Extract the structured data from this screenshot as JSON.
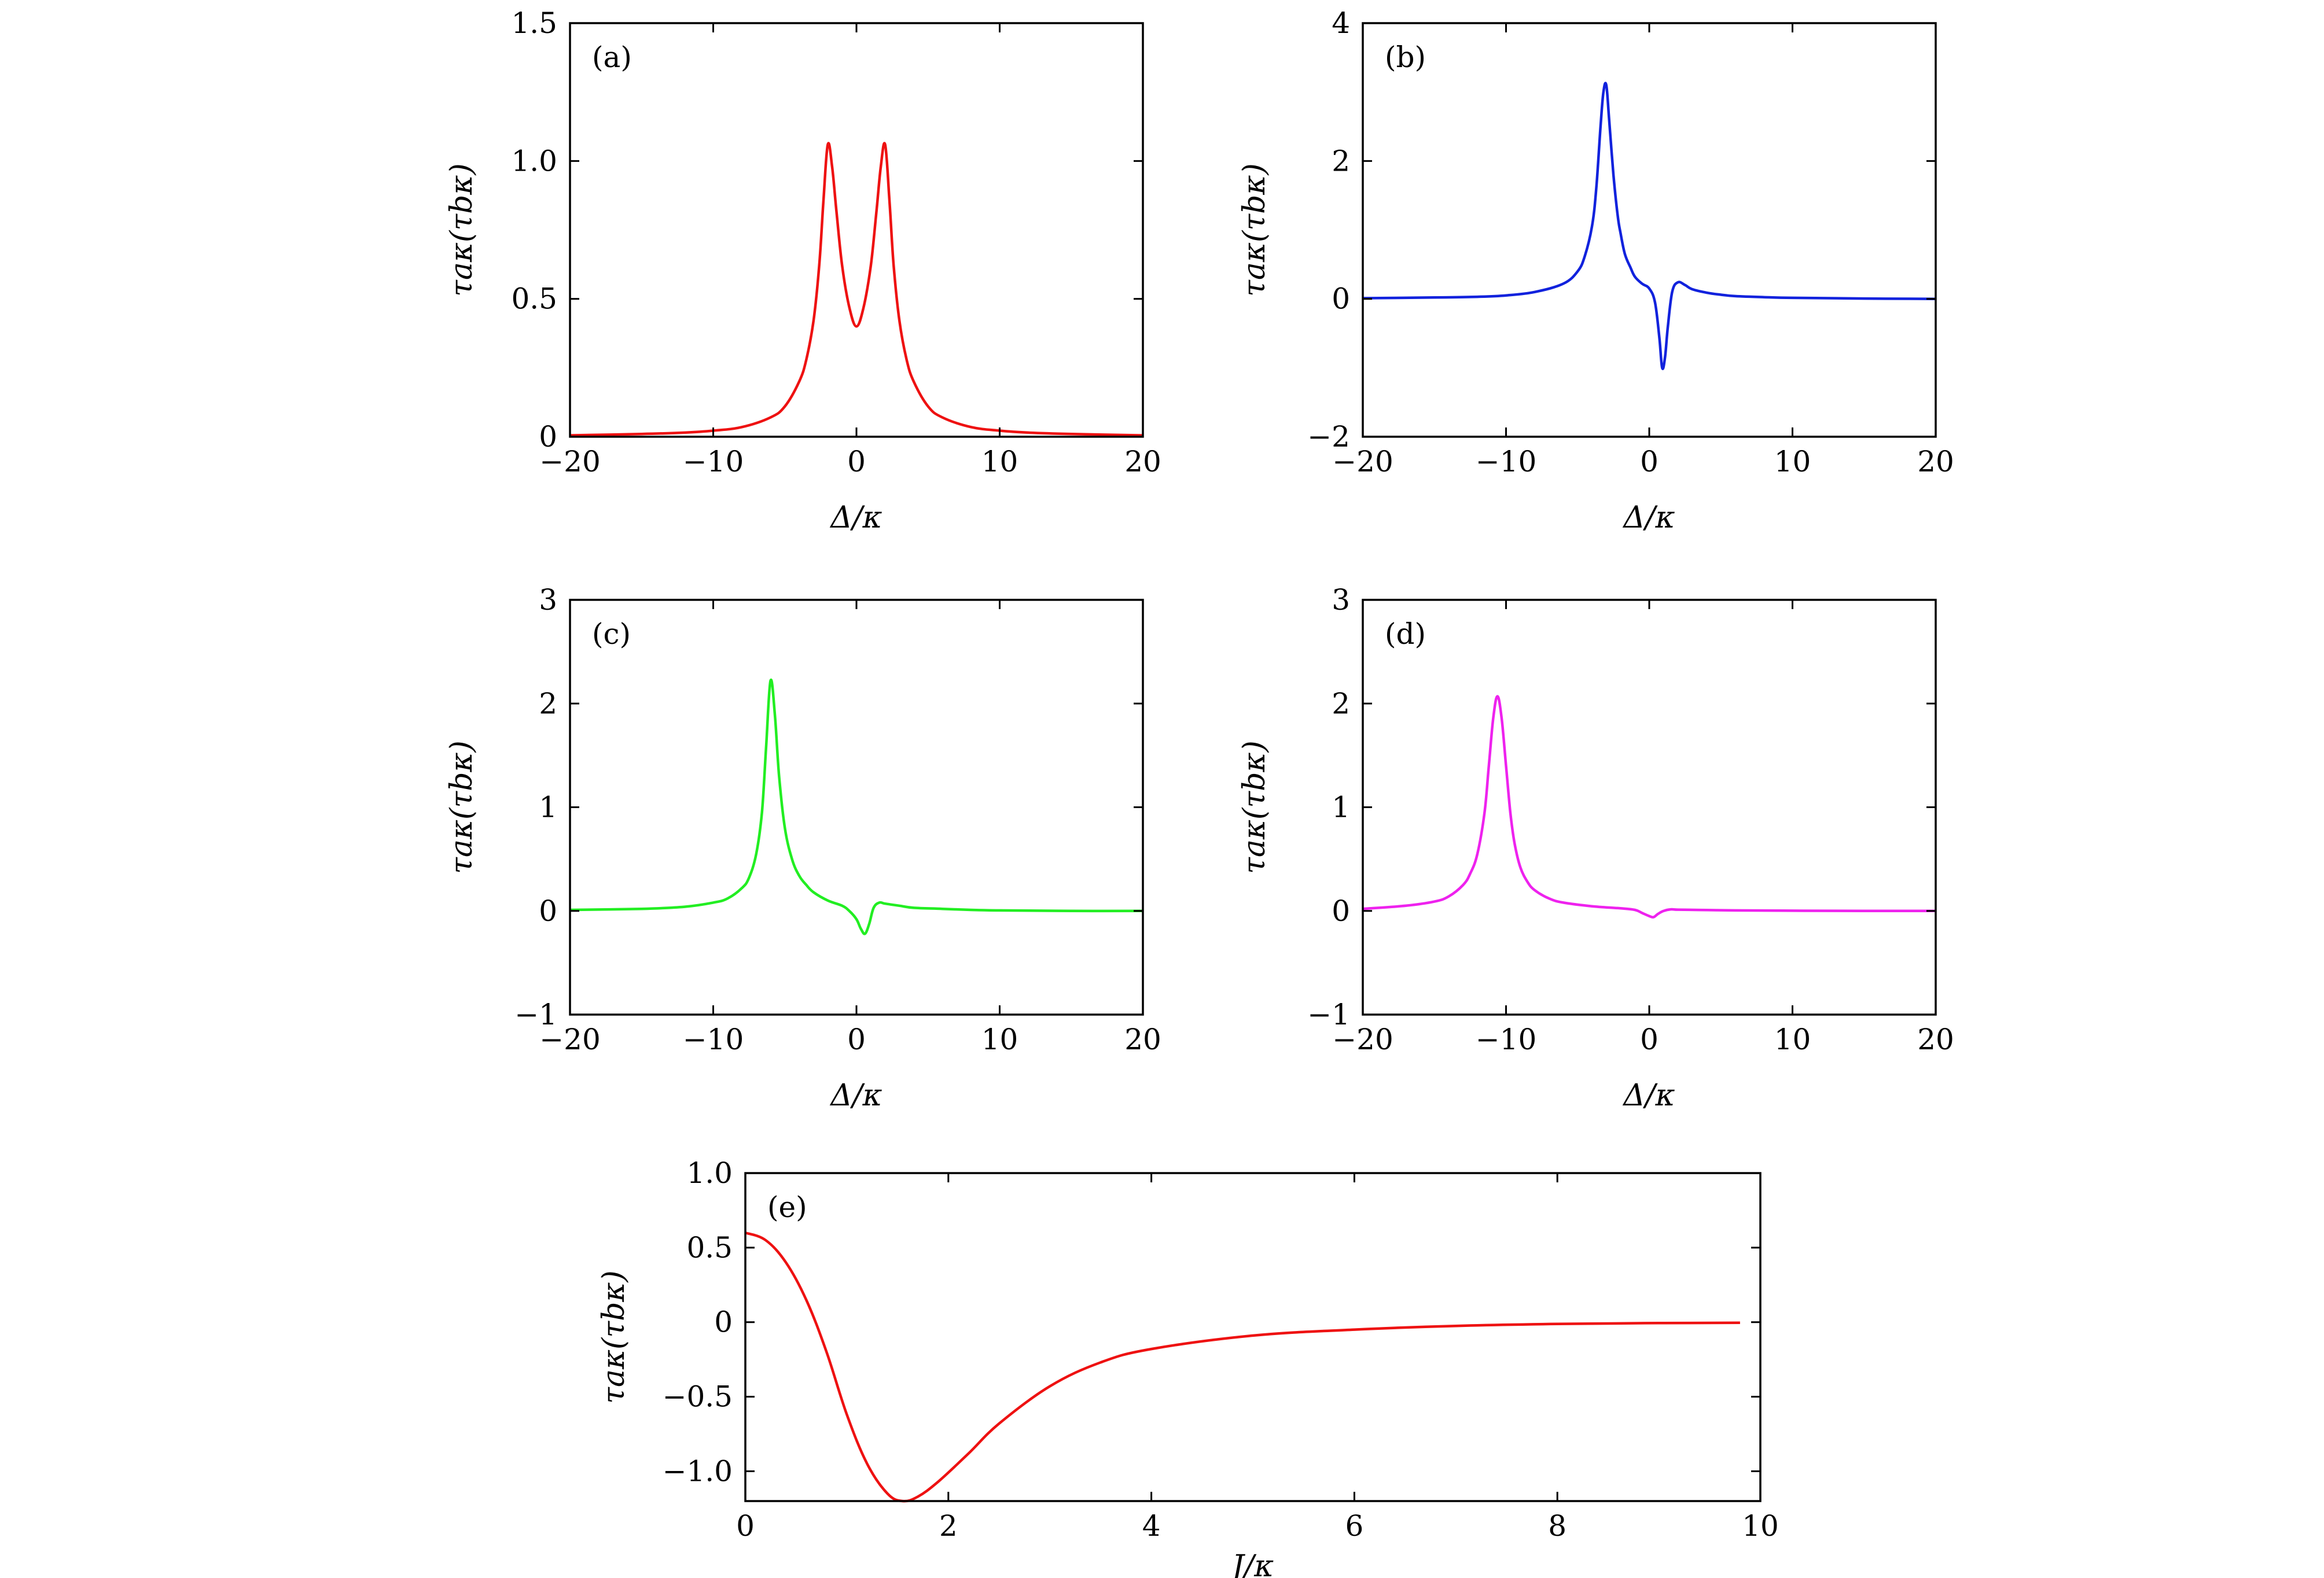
{
  "chart_data": [
    {
      "panel": "(a)",
      "type": "line",
      "xlabel": "Δ/κ",
      "ylabel": "τaκ(τbκ)",
      "xlim": [
        -20,
        20
      ],
      "ylim": [
        0,
        1.5
      ],
      "xticks": [
        -20,
        -10,
        0,
        10,
        20
      ],
      "xtick_labels": [
        "−20",
        "−10",
        "0",
        "10",
        "20"
      ],
      "yticks": [
        0,
        0.5,
        1.0,
        1.5
      ],
      "ytick_labels": [
        "0",
        "0.5",
        "1.0",
        "1.5"
      ],
      "color": "#ee1111",
      "x": [
        -20,
        -15,
        -12,
        -10,
        -8,
        -6,
        -5,
        -4,
        -3.5,
        -3,
        -2.6,
        -2.3,
        -2,
        -1.7,
        -1.4,
        -1,
        -0.5,
        0,
        0.5,
        1,
        1.4,
        1.7,
        2,
        2.3,
        2.6,
        3,
        3.5,
        4,
        5,
        6,
        8,
        10,
        12,
        15,
        20
      ],
      "y": [
        0.005,
        0.01,
        0.015,
        0.022,
        0.035,
        0.07,
        0.11,
        0.2,
        0.28,
        0.42,
        0.62,
        0.86,
        1.06,
        0.98,
        0.82,
        0.62,
        0.47,
        0.4,
        0.47,
        0.62,
        0.82,
        0.98,
        1.06,
        0.86,
        0.62,
        0.42,
        0.28,
        0.2,
        0.11,
        0.07,
        0.035,
        0.022,
        0.015,
        0.01,
        0.005
      ]
    },
    {
      "panel": "(b)",
      "type": "line",
      "xlabel": "Δ/κ",
      "ylabel": "τaκ(τbκ)",
      "xlim": [
        -20,
        20
      ],
      "ylim": [
        -2,
        4
      ],
      "xticks": [
        -20,
        -10,
        0,
        10,
        20
      ],
      "xtick_labels": [
        "−20",
        "−10",
        "0",
        "10",
        "20"
      ],
      "yticks": [
        -2,
        0,
        2,
        4
      ],
      "ytick_labels": [
        "−2",
        "0",
        "2",
        "4"
      ],
      "color": "#1122dd",
      "x": [
        -20,
        -15,
        -12,
        -10,
        -8,
        -6,
        -5,
        -4.5,
        -4,
        -3.7,
        -3.4,
        -3.2,
        -3,
        -2.8,
        -2.5,
        -2.2,
        -2,
        -1.7,
        -1.3,
        -1,
        -0.5,
        0,
        0.4,
        0.7,
        0.9,
        1.1,
        1.3,
        1.6,
        2,
        2.5,
        3,
        4,
        5,
        6,
        8,
        10,
        15,
        20
      ],
      "y": [
        0.01,
        0.02,
        0.03,
        0.05,
        0.1,
        0.22,
        0.4,
        0.62,
        1.05,
        1.6,
        2.5,
        3.0,
        3.1,
        2.6,
        1.8,
        1.2,
        0.95,
        0.65,
        0.45,
        0.32,
        0.22,
        0.15,
        -0.05,
        -0.55,
        -1.0,
        -0.85,
        -0.4,
        0.1,
        0.24,
        0.2,
        0.14,
        0.09,
        0.06,
        0.04,
        0.025,
        0.015,
        0.005,
        0.0
      ]
    },
    {
      "panel": "(c)",
      "type": "line",
      "xlabel": "Δ/κ",
      "ylabel": "τaκ(τbκ)",
      "xlim": [
        -20,
        20
      ],
      "ylim": [
        -1,
        3
      ],
      "xticks": [
        -20,
        -10,
        0,
        10,
        20
      ],
      "xtick_labels": [
        "−20",
        "−10",
        "0",
        "10",
        "20"
      ],
      "yticks": [
        -1,
        0,
        1,
        2,
        3
      ],
      "ytick_labels": [
        "−1",
        "0",
        "1",
        "2",
        "3"
      ],
      "color": "#22ee22",
      "x": [
        -20,
        -15,
        -12,
        -10,
        -9,
        -8,
        -7.5,
        -7,
        -6.6,
        -6.3,
        -6,
        -5.7,
        -5.4,
        -5,
        -4.5,
        -4,
        -3.5,
        -3,
        -2,
        -1,
        -0.5,
        0,
        0.3,
        0.6,
        0.9,
        1.2,
        1.6,
        2,
        3,
        4,
        6,
        8,
        10,
        15,
        20
      ],
      "y": [
        0.01,
        0.02,
        0.04,
        0.08,
        0.12,
        0.22,
        0.32,
        0.55,
        0.95,
        1.6,
        2.22,
        1.9,
        1.3,
        0.8,
        0.5,
        0.34,
        0.25,
        0.18,
        0.1,
        0.05,
        0.0,
        -0.08,
        -0.17,
        -0.22,
        -0.12,
        0.03,
        0.08,
        0.07,
        0.05,
        0.03,
        0.02,
        0.01,
        0.005,
        0.0,
        0.0
      ]
    },
    {
      "panel": "(d)",
      "type": "line",
      "xlabel": "Δ/κ",
      "ylabel": "τaκ(τbκ)",
      "xlim": [
        -20,
        20
      ],
      "ylim": [
        -1,
        3
      ],
      "xticks": [
        -20,
        -10,
        0,
        10,
        20
      ],
      "xtick_labels": [
        "−20",
        "−10",
        "0",
        "10",
        "20"
      ],
      "yticks": [
        -1,
        0,
        1,
        2,
        3
      ],
      "ytick_labels": [
        "−1",
        "0",
        "1",
        "2",
        "3"
      ],
      "color": "#ee22ee",
      "x": [
        -20,
        -17,
        -15,
        -14,
        -13,
        -12.5,
        -12,
        -11.5,
        -11.2,
        -10.9,
        -10.6,
        -10.3,
        -10,
        -9.7,
        -9.4,
        -9,
        -8.5,
        -8,
        -7,
        -6,
        -4,
        -2,
        -1,
        -0.5,
        0,
        0.3,
        0.6,
        1,
        1.5,
        2,
        4,
        6,
        10,
        15,
        20
      ],
      "y": [
        0.02,
        0.05,
        0.09,
        0.14,
        0.25,
        0.36,
        0.55,
        0.95,
        1.4,
        1.85,
        2.07,
        1.85,
        1.4,
        0.95,
        0.65,
        0.42,
        0.28,
        0.2,
        0.12,
        0.08,
        0.045,
        0.025,
        0.01,
        -0.02,
        -0.05,
        -0.06,
        -0.03,
        0.0,
        0.015,
        0.012,
        0.008,
        0.005,
        0.002,
        0.0,
        0.0
      ]
    },
    {
      "panel": "(e)",
      "type": "line",
      "xlabel": "J/κ",
      "ylabel": "τaκ(τbκ)",
      "xlim": [
        0,
        10
      ],
      "ylim": [
        -1.2,
        1.0
      ],
      "xticks": [
        0,
        2,
        4,
        6,
        8,
        10
      ],
      "xtick_labels": [
        "0",
        "2",
        "4",
        "6",
        "8",
        "10"
      ],
      "yticks": [
        -1.0,
        -0.5,
        0,
        0.5,
        1.0
      ],
      "ytick_labels": [
        "−1.0",
        "−0.5",
        "0",
        "0.5",
        "1.0"
      ],
      "color": "#ee1111",
      "x": [
        0,
        0.2,
        0.4,
        0.6,
        0.8,
        1.0,
        1.2,
        1.4,
        1.55,
        1.7,
        1.9,
        2.2,
        2.5,
        3.0,
        3.5,
        4.0,
        5.0,
        6.0,
        7.0,
        8.0,
        9.0,
        9.8
      ],
      "y": [
        0.6,
        0.55,
        0.4,
        0.15,
        -0.2,
        -0.62,
        -0.95,
        -1.15,
        -1.2,
        -1.17,
        -1.07,
        -0.88,
        -0.68,
        -0.43,
        -0.27,
        -0.18,
        -0.09,
        -0.05,
        -0.025,
        -0.012,
        -0.006,
        -0.004
      ]
    }
  ]
}
